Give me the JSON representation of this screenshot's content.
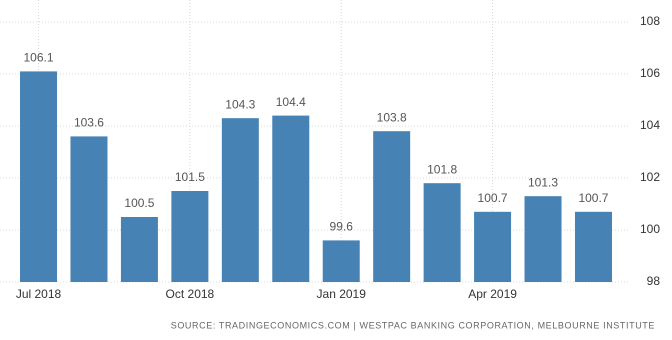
{
  "chart_data": {
    "type": "bar",
    "categories": [
      "Jul 2018",
      null,
      null,
      "Oct 2018",
      null,
      null,
      "Jan 2019",
      null,
      null,
      "Apr 2019",
      null,
      null
    ],
    "values": [
      106.1,
      103.6,
      100.5,
      101.5,
      104.3,
      104.4,
      99.6,
      103.8,
      101.8,
      100.7,
      101.3,
      100.7
    ],
    "color": "#4682b4",
    "ylim": [
      98,
      108
    ],
    "yticks": [
      98,
      100,
      102,
      104,
      106,
      108
    ],
    "grid": true,
    "source": "SOURCE: TRADINGECONOMICS.COM | WESTPAC BANKING CORPORATION, MELBOURNE INSTITUTE"
  }
}
